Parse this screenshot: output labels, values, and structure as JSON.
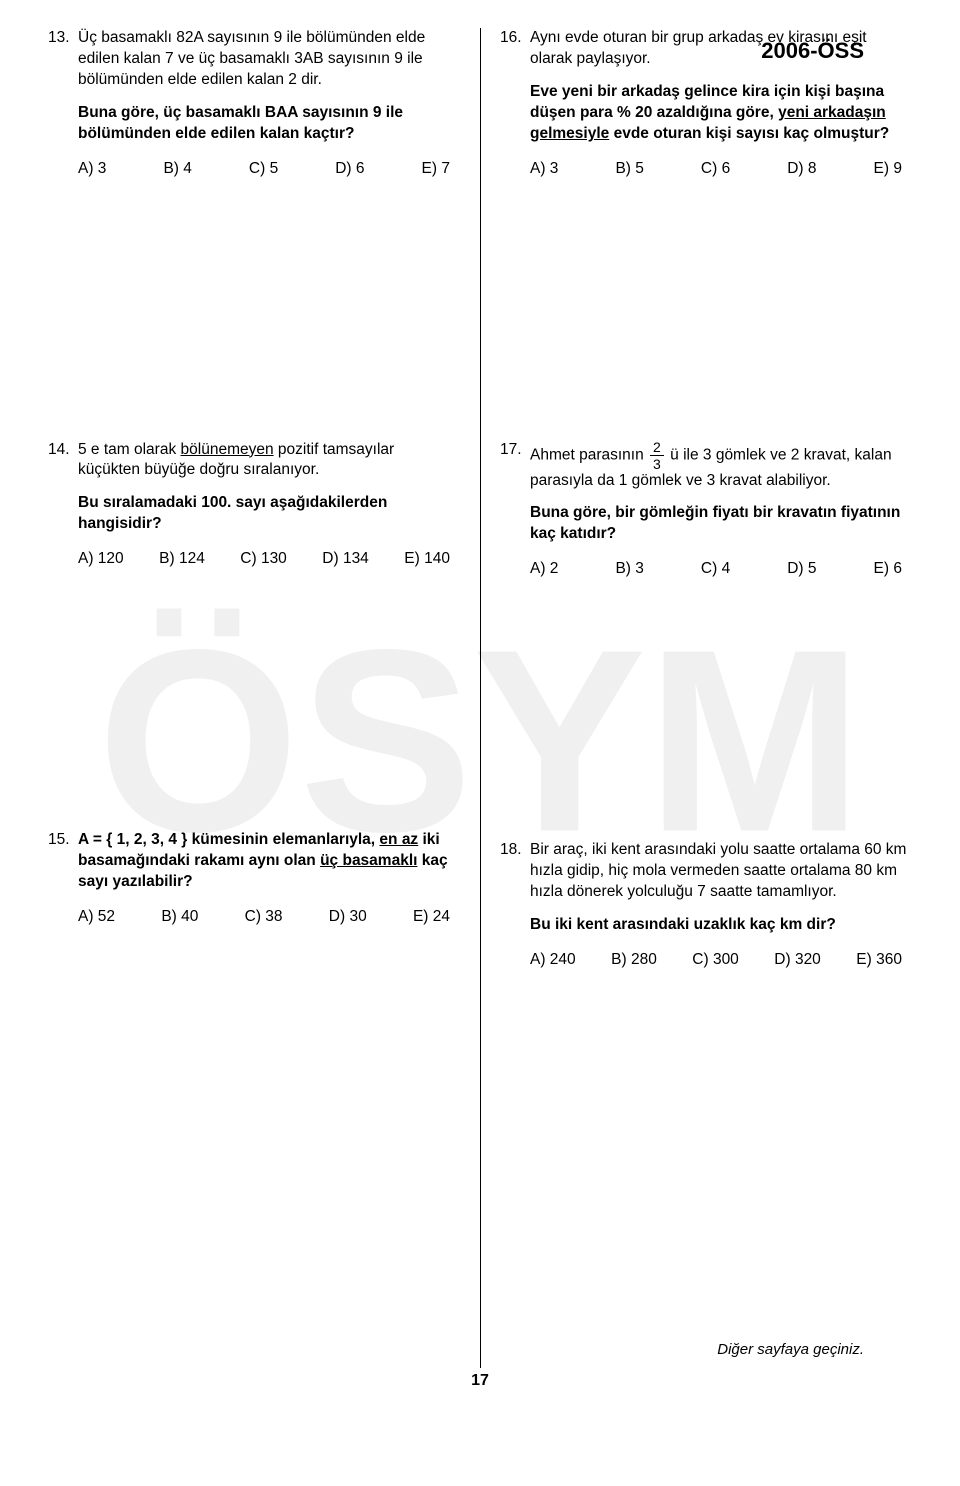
{
  "header": {
    "exam_code": "2006-ÖSS"
  },
  "watermark": {
    "text": "ÖSYM"
  },
  "questions": {
    "q13": {
      "num": "13.",
      "p1": "Üç basamaklı 82A sayısının 9 ile bölümünden elde edilen kalan 7 ve üç basamaklı 3AB sayısının 9 ile bölümünden elde edilen kalan 2 dir.",
      "p2": "Buna göre, üç basamaklı BAA sayısının 9 ile bölümünden elde edilen kalan kaçtır?",
      "choices": {
        "a": "A) 3",
        "b": "B) 4",
        "c": "C) 5",
        "d": "D) 6",
        "e": "E) 7"
      }
    },
    "q14": {
      "num": "14.",
      "p1a": "5 e tam olarak ",
      "p1u": "bölünemeyen",
      "p1b": " pozitif tamsayılar küçükten büyüğe doğru sıralanıyor.",
      "p2": "Bu sıralamadaki 100. sayı aşağıdakilerden hangisidir?",
      "choices": {
        "a": "A) 120",
        "b": "B) 124",
        "c": "C) 130",
        "d": "D) 134",
        "e": "E) 140"
      }
    },
    "q15": {
      "num": "15.",
      "p1a": "A = ",
      "p1set": "{ 1, 2, 3, 4 }",
      "p1b": " kümesinin elemanlarıyla, ",
      "p1u1": "en az",
      "p1c": " iki basamağındaki rakamı aynı olan ",
      "p1u2": "üç basamaklı",
      "p1d": " kaç sayı yazılabilir?",
      "choices": {
        "a": "A) 52",
        "b": "B) 40",
        "c": "C) 38",
        "d": "D) 30",
        "e": "E) 24"
      }
    },
    "q16": {
      "num": "16.",
      "p1": "Aynı evde oturan bir grup arkadaş ev kirasını eşit olarak paylaşıyor.",
      "p2a": "Eve yeni bir arkadaş gelince kira için kişi başına düşen para % 20 azaldığına göre, ",
      "p2u": "yeni arkadaşın gelmesiyle",
      "p2b": " evde oturan kişi sayısı kaç olmuştur?",
      "choices": {
        "a": "A) 3",
        "b": "B) 5",
        "c": "C) 6",
        "d": "D) 8",
        "e": "E) 9"
      }
    },
    "q17": {
      "num": "17.",
      "p1a": "Ahmet parasının ",
      "frac_num": "2",
      "frac_den": "3",
      "p1b": " ü ile 3 gömlek ve 2 kravat, kalan parasıyla da 1 gömlek ve 3 kravat alabiliyor.",
      "p2": "Buna göre, bir gömleğin fiyatı bir kravatın fiyatının kaç katıdır?",
      "choices": {
        "a": "A) 2",
        "b": "B) 3",
        "c": "C) 4",
        "d": "D) 5",
        "e": "E) 6"
      }
    },
    "q18": {
      "num": "18.",
      "p1": "Bir araç, iki kent arasındaki yolu saatte ortalama 60 km hızla gidip, hiç mola vermeden saatte ortalama 80 km hızla dönerek yolculuğu 7 saatte tamamlıyor.",
      "p2": "Bu iki kent arasındaki uzaklık kaç km dir?",
      "choices": {
        "a": "A) 240",
        "b": "B) 280",
        "c": "C) 300",
        "d": "D) 320",
        "e": "E) 360"
      }
    }
  },
  "footer": {
    "note": "Diğer sayfaya geçiniz.",
    "page": "17"
  }
}
